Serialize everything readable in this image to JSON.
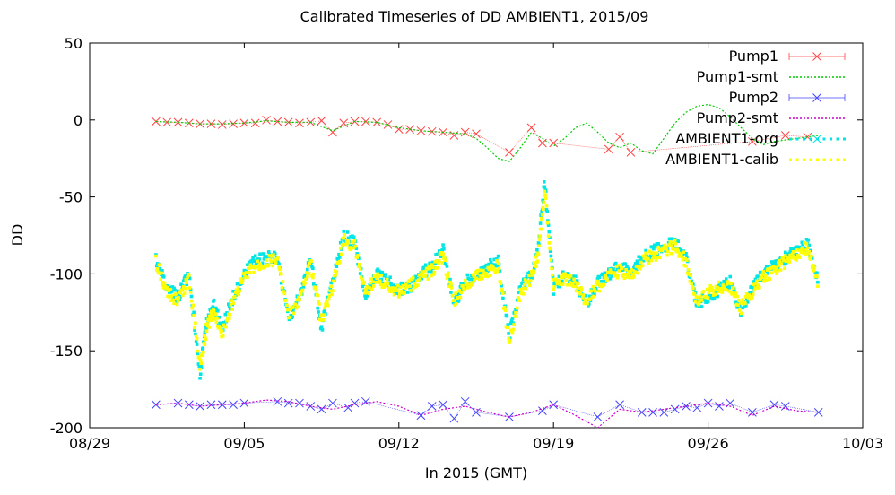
{
  "chart_data": {
    "type": "scatter",
    "title": "Calibrated Timeseries of DD AMBIENT1, 2015/09",
    "xlabel": "In 2015 (GMT)",
    "ylabel": "DD",
    "x_tick_labels": [
      "08/29",
      "09/05",
      "09/12",
      "09/19",
      "09/26",
      "10/03"
    ],
    "y_tick_labels": [
      "50",
      "0",
      "-50",
      "-100",
      "-150",
      "-200"
    ],
    "ylim": [
      -200,
      50
    ],
    "xlim": [
      "2015-08-29",
      "2015-10-03"
    ],
    "grid": false,
    "legend_position": "top-right",
    "colors": {
      "Pump1": "#ff4444",
      "Pump1-smt": "#00cc00",
      "Pump2": "#4444ff",
      "Pump2-smt": "#cc00cc",
      "AMBIENT1-org": "#00e5e5",
      "AMBIENT1-calib": "#ffff00"
    },
    "series": [
      {
        "name": "Pump1",
        "marker": "x",
        "x": [
          "2015-09-01",
          "2015-09-01.5",
          "2015-09-02",
          "2015-09-02.5",
          "2015-09-03",
          "2015-09-03.5",
          "2015-09-04",
          "2015-09-04.5",
          "2015-09-05",
          "2015-09-05.5",
          "2015-09-06",
          "2015-09-06.5",
          "2015-09-07",
          "2015-09-07.5",
          "2015-09-08",
          "2015-09-08.5",
          "2015-09-09",
          "2015-09-09.5",
          "2015-09-10",
          "2015-09-10.5",
          "2015-09-11",
          "2015-09-11.5",
          "2015-09-12",
          "2015-09-12.5",
          "2015-09-13",
          "2015-09-13.5",
          "2015-09-14",
          "2015-09-14.5",
          "2015-09-15",
          "2015-09-15.5",
          "2015-09-17",
          "2015-09-18",
          "2015-09-18.5",
          "2015-09-19",
          "2015-09-21.5",
          "2015-09-22",
          "2015-09-22.5",
          "2015-09-28",
          "2015-09-29.5",
          "2015-09-30.5"
        ],
        "y": [
          -1,
          -1.5,
          -1.5,
          -2,
          -2.5,
          -2.5,
          -3,
          -2.5,
          -2,
          -2,
          0,
          -1,
          -1.5,
          -2,
          -1.5,
          -0.5,
          -8,
          -2,
          -1,
          -1,
          -1.5,
          -3,
          -6,
          -6,
          -7,
          -7.5,
          -8,
          -10,
          -8,
          -9,
          -21,
          -5,
          -15,
          -15,
          -19,
          -11,
          -21,
          -14,
          -10,
          -11
        ]
      },
      {
        "name": "Pump1-smt",
        "x": [
          "2015-09-01",
          "2015-09-02",
          "2015-09-03",
          "2015-09-04",
          "2015-09-05",
          "2015-09-06",
          "2015-09-07",
          "2015-09-08",
          "2015-09-09",
          "2015-09-10",
          "2015-09-11",
          "2015-09-12",
          "2015-09-13",
          "2015-09-14",
          "2015-09-15",
          "2015-09-15.5",
          "2015-09-16",
          "2015-09-16.5",
          "2015-09-17",
          "2015-09-17.5",
          "2015-09-18",
          "2015-09-18.5",
          "2015-09-19",
          "2015-09-19.5",
          "2015-09-20",
          "2015-09-20.5",
          "2015-09-21",
          "2015-09-21.5",
          "2015-09-22",
          "2015-09-22.5",
          "2015-09-23",
          "2015-09-23.5",
          "2015-09-24",
          "2015-09-24.5",
          "2015-09-25",
          "2015-09-25.5",
          "2015-09-26",
          "2015-09-26.5",
          "2015-09-27",
          "2015-09-27.5",
          "2015-09-28",
          "2015-09-28.5",
          "2015-09-29",
          "2015-09-30",
          "2015-10-01"
        ],
        "y": [
          -1,
          -1.5,
          -2.5,
          -2.5,
          -2,
          -0.5,
          -1.5,
          -1.5,
          -7,
          -1,
          -1.5,
          -5,
          -7,
          -8,
          -9,
          -12,
          -18,
          -25,
          -27,
          -18,
          -8,
          -12,
          -17,
          -12,
          -5,
          -2,
          -8,
          -15,
          -18,
          -15,
          -20,
          -22,
          -12,
          -2,
          5,
          9,
          10,
          8,
          2,
          -5,
          -12,
          -16,
          -14,
          -12,
          -10
        ]
      },
      {
        "name": "Pump2",
        "marker": "x",
        "x": [
          "2015-09-01",
          "2015-09-02",
          "2015-09-02.5",
          "2015-09-03",
          "2015-09-03.5",
          "2015-09-04",
          "2015-09-04.5",
          "2015-09-05",
          "2015-09-06.5",
          "2015-09-07",
          "2015-09-07.5",
          "2015-09-08",
          "2015-09-08.5",
          "2015-09-09",
          "2015-09-09.7",
          "2015-09-10",
          "2015-09-10.5",
          "2015-09-13",
          "2015-09-13.5",
          "2015-09-14",
          "2015-09-14.5",
          "2015-09-15",
          "2015-09-15.5",
          "2015-09-17",
          "2015-09-18.5",
          "2015-09-19",
          "2015-09-21",
          "2015-09-22",
          "2015-09-23",
          "2015-09-23.5",
          "2015-09-24",
          "2015-09-24.5",
          "2015-09-25",
          "2015-09-25.5",
          "2015-09-26",
          "2015-09-26.5",
          "2015-09-27",
          "2015-09-28",
          "2015-09-29",
          "2015-09-29.5",
          "2015-10-01"
        ],
        "y": [
          -185,
          -184,
          -185,
          -186,
          -185,
          -185,
          -185,
          -184,
          -183,
          -184,
          -184,
          -186,
          -188,
          -184,
          -187,
          -184,
          -183,
          -192,
          -186,
          -185,
          -194,
          -183,
          -190,
          -193,
          -189,
          -185,
          -193,
          -185,
          -190,
          -190,
          -190,
          -188,
          -186,
          -187,
          -184,
          -186,
          -184,
          -190,
          -185,
          -186,
          -190
        ]
      },
      {
        "name": "Pump2-smt",
        "x": [
          "2015-09-01",
          "2015-09-02",
          "2015-09-03",
          "2015-09-04",
          "2015-09-05",
          "2015-09-06",
          "2015-09-07",
          "2015-09-08",
          "2015-09-09",
          "2015-09-10",
          "2015-09-11",
          "2015-09-12",
          "2015-09-13",
          "2015-09-14",
          "2015-09-15",
          "2015-09-16",
          "2015-09-17",
          "2015-09-18",
          "2015-09-19",
          "2015-09-20",
          "2015-09-21",
          "2015-09-22",
          "2015-09-23",
          "2015-09-24",
          "2015-09-25",
          "2015-09-26",
          "2015-09-27",
          "2015-09-28",
          "2015-09-29",
          "2015-09-30",
          "2015-10-01"
        ],
        "y": [
          -185,
          -184,
          -186,
          -185,
          -184,
          -182,
          -183,
          -186,
          -188,
          -185,
          -183,
          -186,
          -192,
          -188,
          -186,
          -190,
          -193,
          -190,
          -185,
          -192,
          -200,
          -188,
          -190,
          -188,
          -186,
          -184,
          -186,
          -192,
          -186,
          -189,
          -190
        ]
      },
      {
        "name": "AMBIENT1-org",
        "marker": "dot",
        "x": [
          "2015-09-01",
          "2015-09-01.5",
          "2015-09-02",
          "2015-09-02.5",
          "2015-09-03",
          "2015-09-03.3",
          "2015-09-03.6",
          "2015-09-04",
          "2015-09-04.5",
          "2015-09-05",
          "2015-09-05.5",
          "2015-09-06",
          "2015-09-06.5",
          "2015-09-07",
          "2015-09-07.5",
          "2015-09-08",
          "2015-09-08.5",
          "2015-09-09",
          "2015-09-09.5",
          "2015-09-10",
          "2015-09-10.5",
          "2015-09-11",
          "2015-09-11.5",
          "2015-09-12",
          "2015-09-12.5",
          "2015-09-13",
          "2015-09-13.5",
          "2015-09-14",
          "2015-09-14.5",
          "2015-09-15",
          "2015-09-15.5",
          "2015-09-16",
          "2015-09-16.5",
          "2015-09-17",
          "2015-09-17.5",
          "2015-09-18",
          "2015-09-18.3",
          "2015-09-18.6",
          "2015-09-19",
          "2015-09-19.5",
          "2015-09-20",
          "2015-09-20.5",
          "2015-09-21",
          "2015-09-21.5",
          "2015-09-22",
          "2015-09-22.5",
          "2015-09-23",
          "2015-09-23.5",
          "2015-09-24",
          "2015-09-24.5",
          "2015-09-25",
          "2015-09-25.5",
          "2015-09-26",
          "2015-09-26.5",
          "2015-09-27",
          "2015-09-27.5",
          "2015-09-28",
          "2015-09-28.5",
          "2015-09-29",
          "2015-09-29.5",
          "2015-09-30",
          "2015-09-30.5",
          "2015-10-01"
        ],
        "y": [
          -90,
          -110,
          -115,
          -100,
          -165,
          -130,
          -120,
          -135,
          -115,
          -100,
          -92,
          -90,
          -88,
          -130,
          -115,
          -90,
          -135,
          -105,
          -75,
          -80,
          -115,
          -100,
          -105,
          -110,
          -110,
          -100,
          -95,
          -85,
          -120,
          -105,
          -100,
          -95,
          -92,
          -140,
          -110,
          -100,
          -85,
          -40,
          -110,
          -100,
          -105,
          -120,
          -105,
          -100,
          -95,
          -100,
          -90,
          -85,
          -82,
          -80,
          -90,
          -120,
          -115,
          -110,
          -105,
          -125,
          -110,
          -100,
          -95,
          -90,
          -85,
          -80,
          -105
        ]
      },
      {
        "name": "AMBIENT1-calib",
        "marker": "dot",
        "x": [
          "2015-09-01",
          "2015-09-01.5",
          "2015-09-02",
          "2015-09-02.5",
          "2015-09-03",
          "2015-09-03.3",
          "2015-09-03.6",
          "2015-09-04",
          "2015-09-04.5",
          "2015-09-05",
          "2015-09-05.5",
          "2015-09-06",
          "2015-09-06.5",
          "2015-09-07",
          "2015-09-07.5",
          "2015-09-08",
          "2015-09-08.5",
          "2015-09-09",
          "2015-09-09.5",
          "2015-09-10",
          "2015-09-10.5",
          "2015-09-11",
          "2015-09-11.5",
          "2015-09-12",
          "2015-09-12.5",
          "2015-09-13",
          "2015-09-13.5",
          "2015-09-14",
          "2015-09-14.5",
          "2015-09-15",
          "2015-09-15.5",
          "2015-09-16",
          "2015-09-16.5",
          "2015-09-17",
          "2015-09-17.5",
          "2015-09-18",
          "2015-09-18.3",
          "2015-09-18.6",
          "2015-09-19",
          "2015-09-19.5",
          "2015-09-20",
          "2015-09-20.5",
          "2015-09-21",
          "2015-09-21.5",
          "2015-09-22",
          "2015-09-22.5",
          "2015-09-23",
          "2015-09-23.5",
          "2015-09-24",
          "2015-09-24.5",
          "2015-09-25",
          "2015-09-25.5",
          "2015-09-26",
          "2015-09-26.5",
          "2015-09-27",
          "2015-09-27.5",
          "2015-09-28",
          "2015-09-28.5",
          "2015-09-29",
          "2015-09-29.5",
          "2015-09-30",
          "2015-09-30.5",
          "2015-10-01"
        ],
        "y": [
          -92,
          -112,
          -118,
          -102,
          -160,
          -135,
          -125,
          -140,
          -118,
          -102,
          -95,
          -92,
          -90,
          -128,
          -118,
          -92,
          -132,
          -108,
          -78,
          -82,
          -112,
          -102,
          -108,
          -112,
          -108,
          -102,
          -98,
          -88,
          -118,
          -108,
          -102,
          -98,
          -95,
          -145,
          -112,
          -102,
          -88,
          -45,
          -108,
          -102,
          -108,
          -118,
          -108,
          -102,
          -98,
          -102,
          -92,
          -88,
          -85,
          -82,
          -92,
          -118,
          -112,
          -108,
          -108,
          -122,
          -112,
          -102,
          -98,
          -92,
          -88,
          -82,
          -108
        ]
      }
    ]
  }
}
